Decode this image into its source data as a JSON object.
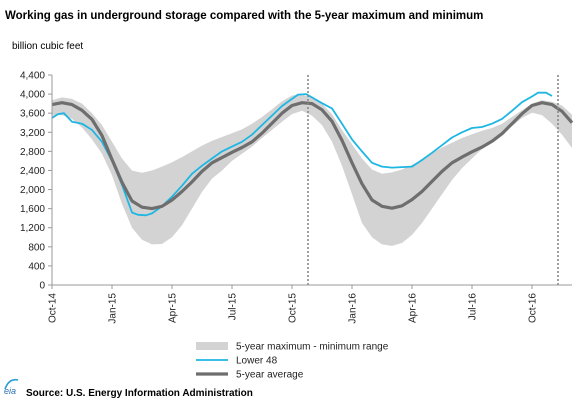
{
  "chart_data": {
    "type": "area",
    "title": "Working gas in underground storage compared with the 5-year maximum and minimum",
    "ylabel": "billion cubic feet",
    "xlabel": "",
    "ylim": [
      0,
      4400
    ],
    "yticks": [
      0,
      400,
      800,
      1200,
      1600,
      2000,
      2400,
      2800,
      3200,
      3600,
      4000,
      4400
    ],
    "xlim": [
      0,
      26
    ],
    "x_ticks": [
      {
        "x": 0,
        "label": "Oct-14"
      },
      {
        "x": 3,
        "label": "Jan-15"
      },
      {
        "x": 6,
        "label": "Apr-15"
      },
      {
        "x": 9,
        "label": "Jul-15"
      },
      {
        "x": 12,
        "label": "Oct-15"
      },
      {
        "x": 15,
        "label": "Jan-16"
      },
      {
        "x": 18,
        "label": "Apr-16"
      },
      {
        "x": 21,
        "label": "Jul-16"
      },
      {
        "x": 24,
        "label": "Oct-16"
      }
    ],
    "x_unit_note": "x values are months since Oct-14",
    "dashed_verticals_x": [
      12.8,
      25.3
    ],
    "grid": false,
    "legend_position": "bottom",
    "series": [
      {
        "name": "5-year maximum - minimum range",
        "kind": "band",
        "color": "#d3d3d3",
        "x": [
          0,
          0.5,
          1,
          1.5,
          2,
          2.5,
          3,
          3.5,
          4,
          4.5,
          5,
          5.5,
          6,
          6.5,
          7,
          7.5,
          8,
          8.5,
          9,
          9.5,
          10,
          10.5,
          11,
          11.5,
          12,
          12.5,
          13,
          13.5,
          14,
          14.5,
          15,
          15.5,
          16,
          16.5,
          17,
          17.5,
          18,
          18.5,
          19,
          19.5,
          20,
          20.5,
          21,
          21.5,
          22,
          22.5,
          23,
          23.5,
          24,
          24.5,
          25,
          25.5,
          26
        ],
        "upper": [
          3870,
          3930,
          3900,
          3800,
          3600,
          3350,
          3000,
          2650,
          2400,
          2350,
          2400,
          2480,
          2570,
          2680,
          2800,
          2920,
          3020,
          3100,
          3180,
          3260,
          3380,
          3520,
          3680,
          3850,
          3970,
          3990,
          3920,
          3800,
          3580,
          3250,
          2950,
          2650,
          2420,
          2330,
          2360,
          2420,
          2520,
          2620,
          2760,
          2880,
          2980,
          3080,
          3160,
          3230,
          3290,
          3380,
          3520,
          3660,
          3800,
          3870,
          3840,
          3760,
          3570
        ],
        "lower": [
          3550,
          3560,
          3480,
          3300,
          3050,
          2750,
          2300,
          1700,
          1200,
          950,
          850,
          860,
          1000,
          1250,
          1600,
          1950,
          2230,
          2400,
          2600,
          2750,
          2900,
          3080,
          3250,
          3420,
          3580,
          3650,
          3550,
          3350,
          3000,
          2500,
          1900,
          1300,
          1000,
          850,
          820,
          880,
          1050,
          1300,
          1600,
          1900,
          2200,
          2450,
          2650,
          2850,
          3000,
          3150,
          3330,
          3500,
          3610,
          3560,
          3380,
          3150,
          2870
        ]
      },
      {
        "name": "Lower 48",
        "kind": "line",
        "color": "#1eb6e3",
        "x": [
          0,
          0.3,
          0.6,
          1,
          1.5,
          2,
          2.5,
          3,
          3.5,
          4,
          4.3,
          4.7,
          5,
          5.5,
          6,
          6.5,
          7,
          7.5,
          8,
          8.5,
          9,
          9.5,
          10,
          10.5,
          11,
          11.5,
          12,
          12.3,
          12.7,
          13,
          13.5,
          14,
          14.5,
          15,
          15.5,
          16,
          16.5,
          17,
          17.5,
          18,
          18.5,
          19,
          19.5,
          20,
          20.5,
          21,
          21.5,
          22,
          22.5,
          23,
          23.5,
          24,
          24.3,
          24.7,
          25
        ],
        "values": [
          3500,
          3580,
          3600,
          3420,
          3380,
          3250,
          3000,
          2600,
          2100,
          1520,
          1470,
          1460,
          1500,
          1650,
          1850,
          2080,
          2330,
          2500,
          2650,
          2800,
          2900,
          3000,
          3150,
          3350,
          3550,
          3750,
          3900,
          3990,
          4000,
          3930,
          3810,
          3700,
          3380,
          3050,
          2800,
          2560,
          2480,
          2460,
          2470,
          2480,
          2620,
          2770,
          2930,
          3090,
          3200,
          3290,
          3310,
          3380,
          3480,
          3650,
          3830,
          3950,
          4030,
          4030,
          3960
        ]
      },
      {
        "name": "5-year average",
        "kind": "line",
        "color": "#6e6e6e",
        "x": [
          0,
          0.5,
          1,
          1.5,
          2,
          2.5,
          3,
          3.5,
          4,
          4.5,
          5,
          5.5,
          6,
          6.5,
          7,
          7.5,
          8,
          8.5,
          9,
          9.5,
          10,
          10.5,
          11,
          11.5,
          12,
          12.5,
          13,
          13.5,
          14,
          14.5,
          15,
          15.5,
          16,
          16.5,
          17,
          17.5,
          18,
          18.5,
          19,
          19.5,
          20,
          20.5,
          21,
          21.5,
          22,
          22.5,
          23,
          23.5,
          24,
          24.5,
          25,
          25.5,
          26
        ],
        "values": [
          3780,
          3820,
          3780,
          3660,
          3470,
          3130,
          2630,
          2150,
          1760,
          1630,
          1600,
          1650,
          1780,
          1960,
          2160,
          2380,
          2560,
          2670,
          2780,
          2880,
          3000,
          3180,
          3390,
          3600,
          3760,
          3820,
          3800,
          3670,
          3430,
          3030,
          2560,
          2120,
          1780,
          1650,
          1610,
          1660,
          1790,
          1960,
          2170,
          2380,
          2560,
          2680,
          2790,
          2890,
          3010,
          3170,
          3380,
          3590,
          3760,
          3820,
          3780,
          3640,
          3400
        ]
      }
    ]
  },
  "footer": {
    "logo_text": "eia",
    "source_text": "Source:  U.S. Energy Information Administration"
  }
}
